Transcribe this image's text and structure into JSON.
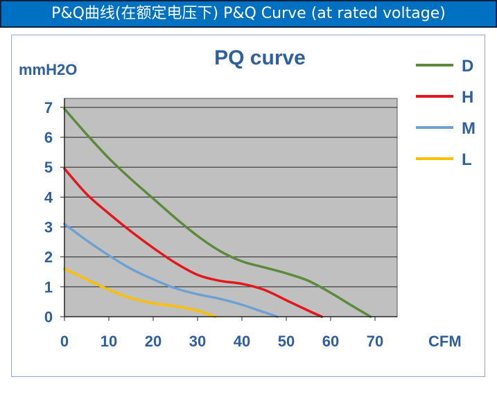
{
  "banner": {
    "text": "P&Q曲线(在额定电压下) P&Q Curve (at rated voltage)"
  },
  "chart_data": {
    "type": "line",
    "title": "PQ curve",
    "xlabel": "CFM",
    "ylabel": "mmH2O",
    "xlim": [
      0,
      75
    ],
    "ylim": [
      0,
      7.3
    ],
    "xticks": [
      0,
      10,
      20,
      30,
      40,
      50,
      60,
      70
    ],
    "yticks": [
      0,
      1,
      2,
      3,
      4,
      5,
      6,
      7
    ],
    "grid": true,
    "legend": "right",
    "background": "#c0c0c0",
    "series": [
      {
        "name": "D",
        "color": "#5b8a3c",
        "x": [
          0,
          5,
          10,
          15,
          20,
          25,
          30,
          35,
          40,
          45,
          50,
          55,
          60,
          65,
          69
        ],
        "y": [
          6.95,
          6.1,
          5.3,
          4.6,
          3.95,
          3.3,
          2.7,
          2.2,
          1.85,
          1.65,
          1.45,
          1.2,
          0.8,
          0.35,
          0
        ]
      },
      {
        "name": "H",
        "color": "#e3161b",
        "x": [
          0,
          5,
          10,
          15,
          20,
          25,
          30,
          35,
          40,
          45,
          50,
          55,
          58
        ],
        "y": [
          4.95,
          4.1,
          3.45,
          2.85,
          2.3,
          1.8,
          1.4,
          1.2,
          1.1,
          0.9,
          0.55,
          0.2,
          0
        ]
      },
      {
        "name": "M",
        "color": "#6fa0d4",
        "x": [
          0,
          5,
          10,
          15,
          20,
          25,
          30,
          35,
          40,
          45,
          48
        ],
        "y": [
          3.1,
          2.55,
          2.05,
          1.6,
          1.25,
          0.95,
          0.75,
          0.6,
          0.4,
          0.15,
          0
        ]
      },
      {
        "name": "L",
        "color": "#ffc000",
        "x": [
          0,
          5,
          10,
          15,
          20,
          25,
          30,
          34
        ],
        "y": [
          1.6,
          1.25,
          0.9,
          0.62,
          0.45,
          0.35,
          0.2,
          0
        ]
      }
    ]
  }
}
